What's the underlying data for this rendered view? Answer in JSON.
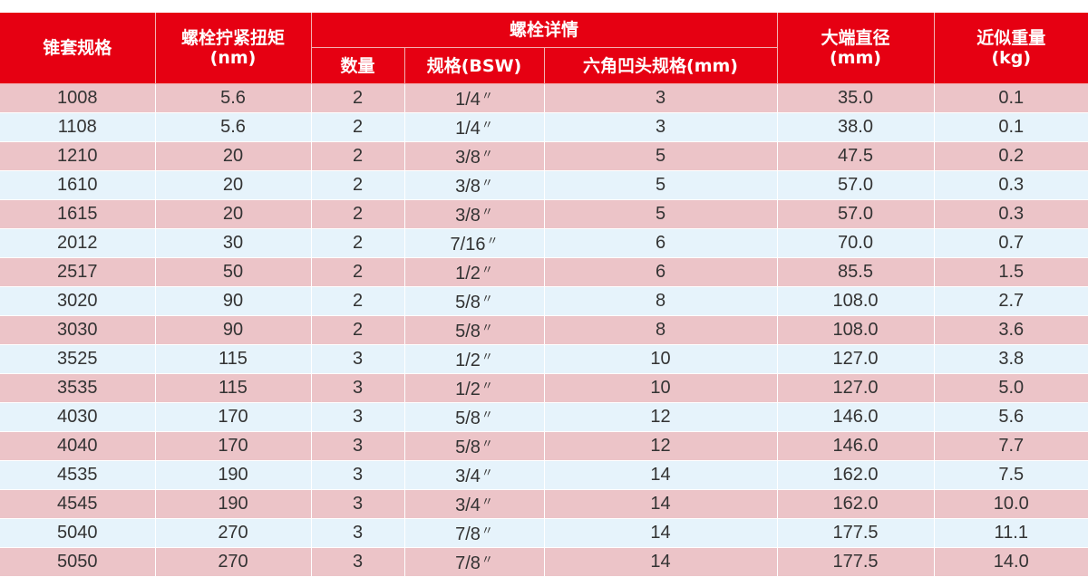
{
  "colors": {
    "header": "#e60012",
    "row_odd": "#ecc4c8",
    "row_even": "#e6f3fb"
  },
  "headers": {
    "spec": "锥套规格",
    "torque": "螺栓拧紧扭矩",
    "torque_unit": "(nm)",
    "bolt_details": "螺栓详情",
    "qty": "数量",
    "bsw": "规格(BSW)",
    "hex": "六角凹头规格(mm)",
    "diameter": "大端直径",
    "diameter_unit": "(mm)",
    "weight": "近似重量",
    "weight_unit": "(kg)"
  },
  "inch_mark": "〃",
  "rows": [
    [
      "1008",
      "5.6",
      "2",
      "1/4",
      "3",
      "35.0",
      "0.1"
    ],
    [
      "1108",
      "5.6",
      "2",
      "1/4",
      "3",
      "38.0",
      "0.1"
    ],
    [
      "1210",
      "20",
      "2",
      "3/8",
      "5",
      "47.5",
      "0.2"
    ],
    [
      "1610",
      "20",
      "2",
      "3/8",
      "5",
      "57.0",
      "0.3"
    ],
    [
      "1615",
      "20",
      "2",
      "3/8",
      "5",
      "57.0",
      "0.3"
    ],
    [
      "2012",
      "30",
      "2",
      "7/16",
      "6",
      "70.0",
      "0.7"
    ],
    [
      "2517",
      "50",
      "2",
      "1/2",
      "6",
      "85.5",
      "1.5"
    ],
    [
      "3020",
      "90",
      "2",
      "5/8",
      "8",
      "108.0",
      "2.7"
    ],
    [
      "3030",
      "90",
      "2",
      "5/8",
      "8",
      "108.0",
      "3.6"
    ],
    [
      "3525",
      "115",
      "3",
      "1/2",
      "10",
      "127.0",
      "3.8"
    ],
    [
      "3535",
      "115",
      "3",
      "1/2",
      "10",
      "127.0",
      "5.0"
    ],
    [
      "4030",
      "170",
      "3",
      "5/8",
      "12",
      "146.0",
      "5.6"
    ],
    [
      "4040",
      "170",
      "3",
      "5/8",
      "12",
      "146.0",
      "7.7"
    ],
    [
      "4535",
      "190",
      "3",
      "3/4",
      "14",
      "162.0",
      "7.5"
    ],
    [
      "4545",
      "190",
      "3",
      "3/4",
      "14",
      "162.0",
      "10.0"
    ],
    [
      "5040",
      "270",
      "3",
      "7/8",
      "14",
      "177.5",
      "11.1"
    ],
    [
      "5050",
      "270",
      "3",
      "7/8",
      "14",
      "177.5",
      "14.0"
    ]
  ]
}
